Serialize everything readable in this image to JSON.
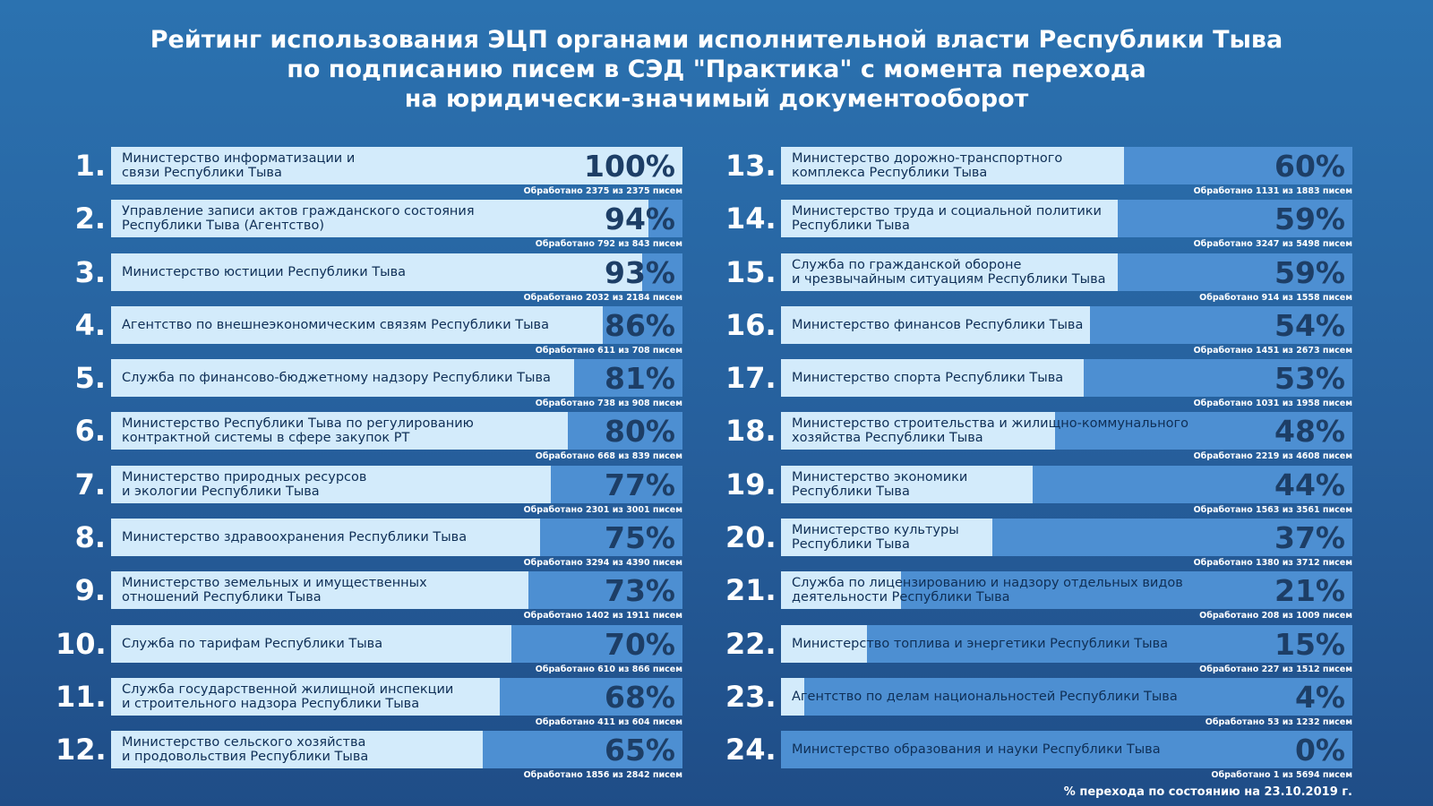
{
  "title": {
    "line1": "Рейтинг использования ЭЦП органами исполнительной власти Республики Тыва",
    "line2": "по подписанию писем в СЭД \"Практика\" с момента перехода",
    "line3": "на юридически-значимый документооборот"
  },
  "footnote": "% перехода по состоянию на 23.10.2019 г.",
  "colors": {
    "background": "#2b72b0",
    "bar_filled": "#d3ebfb",
    "bar_remaining": "#4d8fd2",
    "text_dark": "#0f2f56"
  },
  "chart_data": {
    "type": "bar",
    "title": "Рейтинг использования ЭЦП органами исполнительной власти Республики Тыва по подписанию писем в СЭД \"Практика\" с момента перехода на юридически-значимый документооборот",
    "xlabel": "",
    "ylabel": "",
    "ylim": [
      0,
      100
    ],
    "items": [
      {
        "rank": "1.",
        "name": "Министерство информатизации и\nсвязи Республики Тыва",
        "value": 100,
        "label": "100%",
        "processed": "Обработано 2375 из 2375 писем"
      },
      {
        "rank": "2.",
        "name": "Управление записи актов гражданского состояния\nРеспублики Тыва (Агентство)",
        "value": 94,
        "label": "94%",
        "processed": "Обработано 792 из 843 писем"
      },
      {
        "rank": "3.",
        "name": "Министерство юстиции Республики Тыва",
        "value": 93,
        "label": "93%",
        "processed": "Обработано 2032 из 2184 писем"
      },
      {
        "rank": "4.",
        "name": "Агентство по внешнеэкономическим связям Республики Тыва",
        "value": 86,
        "label": "86%",
        "processed": "Обработано 611 из 708 писем"
      },
      {
        "rank": "5.",
        "name": "Служба по финансово-бюджетному надзору Республики Тыва",
        "value": 81,
        "label": "81%",
        "processed": "Обработано 738 из 908 писем"
      },
      {
        "rank": "6.",
        "name": "Министерство Республики Тыва по регулированию\nконтрактной системы в сфере закупок РТ",
        "value": 80,
        "label": "80%",
        "processed": "Обработано 668 из 839 писем"
      },
      {
        "rank": "7.",
        "name": "Министерство природных ресурсов\nи экологии Республики Тыва",
        "value": 77,
        "label": "77%",
        "processed": "Обработано 2301 из 3001 писем"
      },
      {
        "rank": "8.",
        "name": "Министерство здравоохранения Республики Тыва",
        "value": 75,
        "label": "75%",
        "processed": "Обработано 3294 из 4390 писем"
      },
      {
        "rank": "9.",
        "name": "Министерство земельных и имущественных\nотношений Республики Тыва",
        "value": 73,
        "label": "73%",
        "processed": "Обработано 1402 из 1911 писем"
      },
      {
        "rank": "10.",
        "name": "Служба по тарифам Республики Тыва",
        "value": 70,
        "label": "70%",
        "processed": "Обработано 610 из 866 писем"
      },
      {
        "rank": "11.",
        "name": "Служба государственной жилищной инспекции\nи строительного надзора Республики Тыва",
        "value": 68,
        "label": "68%",
        "processed": "Обработано 411 из 604 писем"
      },
      {
        "rank": "12.",
        "name": "Министерство сельского хозяйства\nи продовольствия Республики Тыва",
        "value": 65,
        "label": "65%",
        "processed": "Обработано 1856 из 2842 писем"
      },
      {
        "rank": "13.",
        "name": "Министерство дорожно-транспортного\nкомплекса Республики Тыва",
        "value": 60,
        "label": "60%",
        "processed": "Обработано 1131 из 1883 писем"
      },
      {
        "rank": "14.",
        "name": "Министерство труда и социальной политики\nРеспублики Тыва",
        "value": 59,
        "label": "59%",
        "processed": "Обработано 3247 из 5498 писем"
      },
      {
        "rank": "15.",
        "name": "Служба по гражданской обороне\nи чрезвычайным ситуациям Республики Тыва",
        "value": 59,
        "label": "59%",
        "processed": "Обработано 914 из 1558 писем"
      },
      {
        "rank": "16.",
        "name": "Министерство финансов Республики Тыва",
        "value": 54,
        "label": "54%",
        "processed": "Обработано 1451 из 2673 писем"
      },
      {
        "rank": "17.",
        "name": "Министерство спорта Республики Тыва",
        "value": 53,
        "label": "53%",
        "processed": "Обработано 1031 из 1958 писем"
      },
      {
        "rank": "18.",
        "name": "Министерство строительства и жилищно-коммунального\nхозяйства Республики Тыва",
        "value": 48,
        "label": "48%",
        "processed": "Обработано 2219 из 4608 писем"
      },
      {
        "rank": "19.",
        "name": "Министерство экономики\nРеспублики Тыва",
        "value": 44,
        "label": "44%",
        "processed": "Обработано 1563 из 3561 писем"
      },
      {
        "rank": "20.",
        "name": "Министерство культуры\nРеспублики Тыва",
        "value": 37,
        "label": "37%",
        "processed": "Обработано 1380 из 3712 писем"
      },
      {
        "rank": "21.",
        "name": "Служба по лицензированию и надзору отдельных видов\nдеятельности Республики Тыва",
        "value": 21,
        "label": "21%",
        "processed": "Обработано 208 из 1009 писем"
      },
      {
        "rank": "22.",
        "name": "Министерство топлива и энергетики Республики Тыва",
        "value": 15,
        "label": "15%",
        "processed": "Обработано 227 из 1512 писем"
      },
      {
        "rank": "23.",
        "name": "Агентство по делам национальностей Республики Тыва",
        "value": 4,
        "label": "4%",
        "processed": "Обработано 53 из 1232 писем"
      },
      {
        "rank": "24.",
        "name": "Министерство образования и науки Республики Тыва",
        "value": 0,
        "label": "0%",
        "processed": "Обработано 1 из 5694 писем"
      }
    ]
  }
}
